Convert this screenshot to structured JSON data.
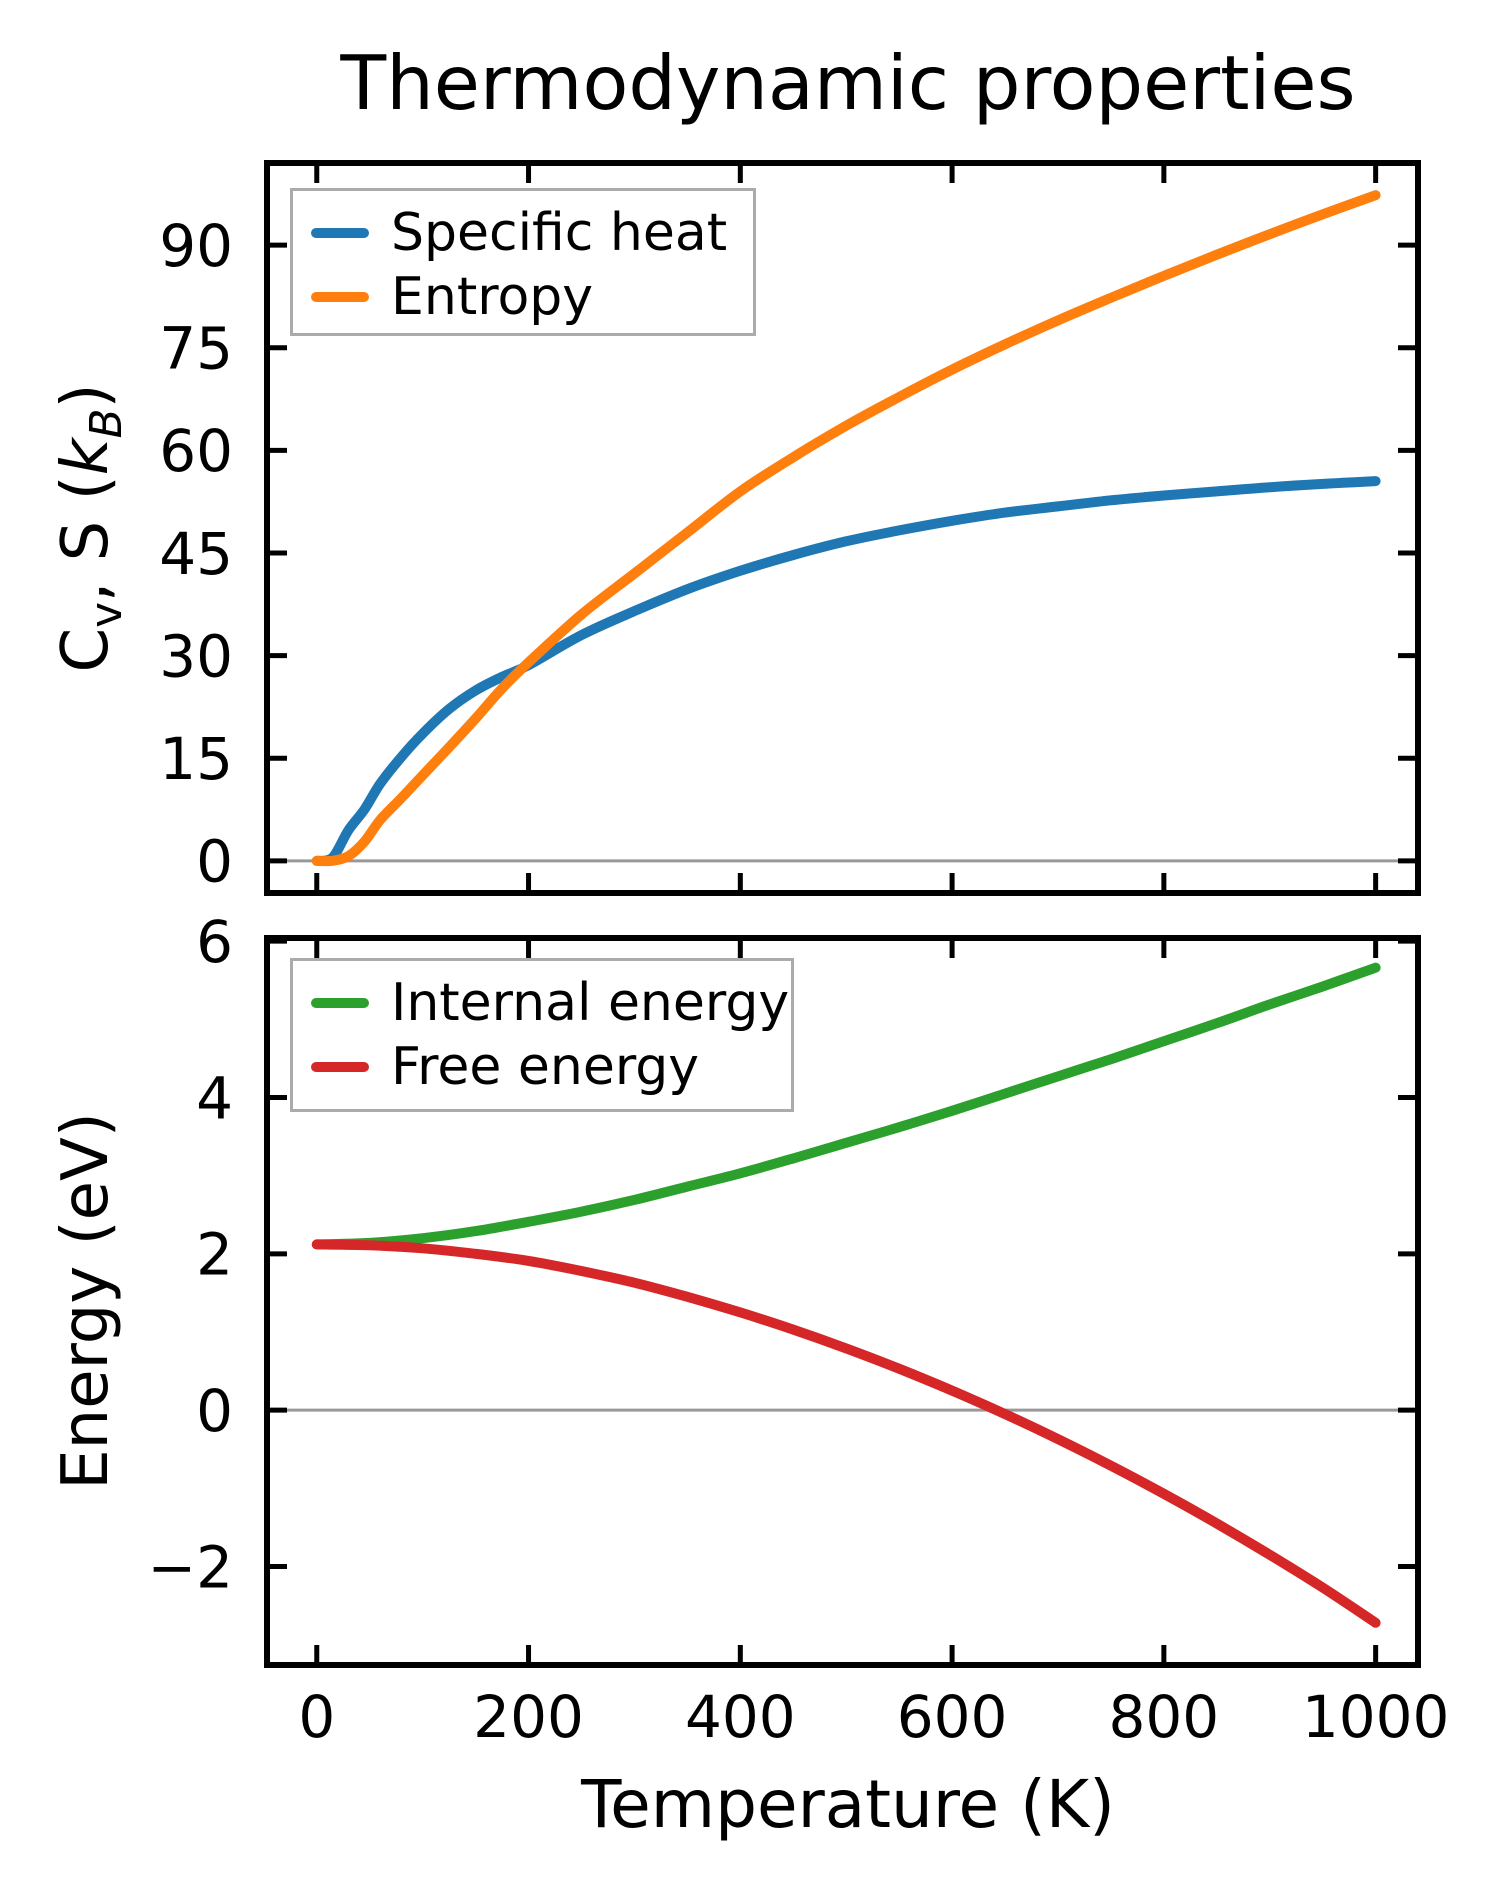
{
  "figure": {
    "title": "Thermodynamic properties",
    "background_color": "#ffffff",
    "text_color": "#000000",
    "zero_line_color": "#999999",
    "spine_color": "#000000"
  },
  "chart_data": [
    {
      "type": "line",
      "title": "Thermodynamic properties",
      "xlabel": "",
      "ylabel": "Cv, S (kB)",
      "ylabel_html": "C<sub>v</sub>, S (<i>k<sub>B</sub></i>)",
      "x": [
        0,
        15,
        30,
        45,
        60,
        80,
        100,
        125,
        150,
        175,
        200,
        250,
        300,
        350,
        400,
        450,
        500,
        550,
        600,
        650,
        700,
        750,
        800,
        850,
        900,
        950,
        1000
      ],
      "series": [
        {
          "name": "Specific heat",
          "color": "#1f77b4",
          "values": [
            0,
            0.5,
            4.5,
            7.5,
            11.3,
            15.2,
            18.6,
            22.2,
            24.9,
            26.9,
            28.6,
            33.0,
            36.5,
            39.7,
            42.4,
            44.7,
            46.7,
            48.3,
            49.7,
            50.9,
            51.8,
            52.7,
            53.4,
            54.0,
            54.6,
            55.1,
            55.5
          ]
        },
        {
          "name": "Entropy",
          "color": "#ff7f0e",
          "values": [
            0,
            0,
            0.7,
            2.8,
            6.0,
            9.2,
            12.5,
            16.6,
            20.8,
            25.2,
            29.0,
            36.0,
            42.0,
            48.0,
            54.0,
            59.0,
            63.6,
            67.8,
            71.8,
            75.5,
            79.0,
            82.3,
            85.5,
            88.6,
            91.6,
            94.5,
            97.3
          ]
        }
      ],
      "xticks": [
        0,
        200,
        400,
        600,
        800,
        1000
      ],
      "yticks": [
        0,
        15,
        30,
        45,
        60,
        75,
        90
      ],
      "show_xtick_labels": false,
      "xlim": [
        -47,
        1040
      ],
      "ylim": [
        -4.7,
        102.0
      ],
      "zero_line": true,
      "grid": false,
      "legend_position": "upper-left"
    },
    {
      "type": "line",
      "title": "",
      "xlabel": "Temperature (K)",
      "ylabel": "Energy (eV)",
      "ylabel_html": "Energy (eV)",
      "x": [
        0,
        50,
        100,
        150,
        200,
        250,
        300,
        350,
        400,
        450,
        500,
        550,
        600,
        650,
        700,
        750,
        800,
        850,
        900,
        950,
        1000
      ],
      "series": [
        {
          "name": "Internal energy",
          "color": "#2ca02c",
          "values": [
            2.12,
            2.14,
            2.2,
            2.29,
            2.41,
            2.54,
            2.69,
            2.86,
            3.03,
            3.22,
            3.42,
            3.62,
            3.83,
            4.05,
            4.27,
            4.49,
            4.72,
            4.95,
            5.19,
            5.42,
            5.66
          ]
        },
        {
          "name": "Free energy",
          "color": "#d62728",
          "values": [
            2.12,
            2.11,
            2.07,
            2.0,
            1.91,
            1.78,
            1.63,
            1.45,
            1.25,
            1.03,
            0.79,
            0.53,
            0.25,
            -0.05,
            -0.37,
            -0.71,
            -1.07,
            -1.45,
            -1.85,
            -2.27,
            -2.72
          ]
        }
      ],
      "xticks": [
        0,
        200,
        400,
        600,
        800,
        1000
      ],
      "yticks": [
        -2,
        0,
        2,
        4,
        6
      ],
      "show_xtick_labels": true,
      "xlim": [
        -47,
        1040
      ],
      "ylim": [
        -3.26,
        6.04
      ],
      "zero_line": true,
      "grid": false,
      "legend_position": "upper-left"
    }
  ]
}
